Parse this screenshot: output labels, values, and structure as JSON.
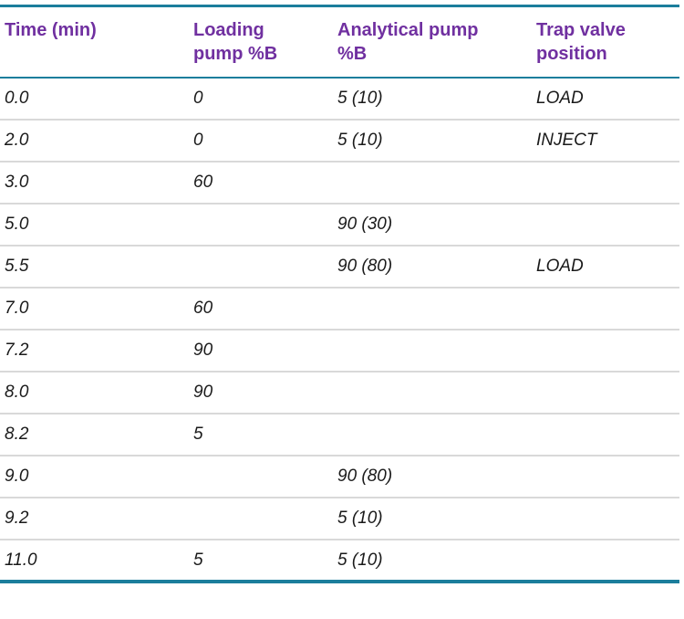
{
  "table": {
    "name": "lc-gradient-method-table",
    "colors": {
      "header_text": "#7030a0",
      "accent_rule": "#1b7e9c",
      "row_divider": "#d9d9d9",
      "cell_text": "#1a1a1a",
      "page_background": "#ffffff"
    },
    "columns": [
      {
        "id": "time",
        "label": "Time (min)"
      },
      {
        "id": "loading-pump",
        "label": "Loading\npump %B"
      },
      {
        "id": "analytical-pump",
        "label": "Analytical pump\n%B"
      },
      {
        "id": "trap-valve",
        "label": "Trap valve\nposition"
      }
    ],
    "rows": [
      [
        "0.0",
        "0",
        "5 (10)",
        "LOAD"
      ],
      [
        "2.0",
        "0",
        "5 (10)",
        "INJECT"
      ],
      [
        "3.0",
        "60",
        "",
        ""
      ],
      [
        "5.0",
        "",
        "90 (30)",
        ""
      ],
      [
        "5.5",
        "",
        "90 (80)",
        "LOAD"
      ],
      [
        "7.0",
        "60",
        "",
        ""
      ],
      [
        "7.2",
        "90",
        "",
        ""
      ],
      [
        "8.0",
        "90",
        "",
        ""
      ],
      [
        "8.2",
        "5",
        "",
        ""
      ],
      [
        "9.0",
        "",
        "90 (80)",
        ""
      ],
      [
        "9.2",
        "",
        "5 (10)",
        ""
      ],
      [
        "11.0",
        "5",
        "5 (10)",
        ""
      ]
    ]
  },
  "chart_data": {
    "type": "table",
    "title": "",
    "columns": [
      "Time (min)",
      "Loading pump %B",
      "Analytical pump %B",
      "Trap valve position"
    ],
    "rows": [
      [
        "0.0",
        "0",
        "5 (10)",
        "LOAD"
      ],
      [
        "2.0",
        "0",
        "5 (10)",
        "INJECT"
      ],
      [
        "3.0",
        "60",
        "",
        ""
      ],
      [
        "5.0",
        "",
        "90 (30)",
        ""
      ],
      [
        "5.5",
        "",
        "90 (80)",
        "LOAD"
      ],
      [
        "7.0",
        "60",
        "",
        ""
      ],
      [
        "7.2",
        "90",
        "",
        ""
      ],
      [
        "8.0",
        "90",
        "",
        ""
      ],
      [
        "8.2",
        "5",
        "",
        ""
      ],
      [
        "9.0",
        "",
        "90 (80)",
        ""
      ],
      [
        "9.2",
        "",
        "5 (10)",
        ""
      ],
      [
        "11.0",
        "5",
        "5 (10)",
        ""
      ]
    ]
  }
}
